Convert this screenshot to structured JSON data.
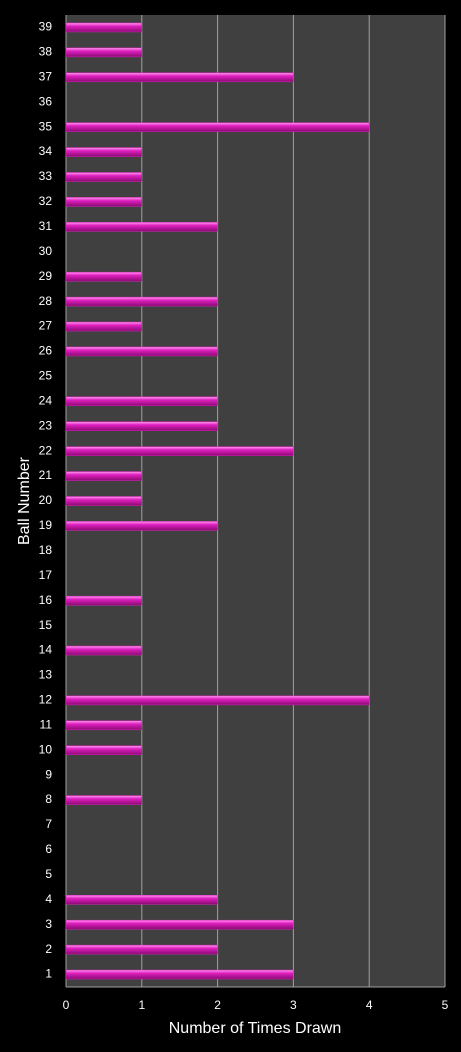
{
  "chart_data": {
    "type": "bar",
    "orientation": "horizontal",
    "xlabel": "Number of Times Drawn",
    "ylabel": "Ball Number",
    "categories": [
      "1",
      "2",
      "3",
      "4",
      "5",
      "6",
      "7",
      "8",
      "9",
      "10",
      "11",
      "12",
      "13",
      "14",
      "15",
      "16",
      "17",
      "18",
      "19",
      "20",
      "21",
      "22",
      "23",
      "24",
      "25",
      "26",
      "27",
      "28",
      "29",
      "30",
      "31",
      "32",
      "33",
      "34",
      "35",
      "36",
      "37",
      "38",
      "39"
    ],
    "values": [
      3,
      2,
      3,
      2,
      0,
      0,
      0,
      1,
      0,
      1,
      1,
      4,
      0,
      1,
      0,
      1,
      0,
      0,
      2,
      1,
      1,
      3,
      2,
      2,
      0,
      2,
      1,
      2,
      1,
      0,
      2,
      1,
      1,
      1,
      4,
      0,
      3,
      1,
      1
    ],
    "color": "#e020c0",
    "xlim": [
      0,
      5
    ],
    "xticks": [
      0,
      1,
      2,
      3,
      4,
      5
    ],
    "grid": true
  }
}
